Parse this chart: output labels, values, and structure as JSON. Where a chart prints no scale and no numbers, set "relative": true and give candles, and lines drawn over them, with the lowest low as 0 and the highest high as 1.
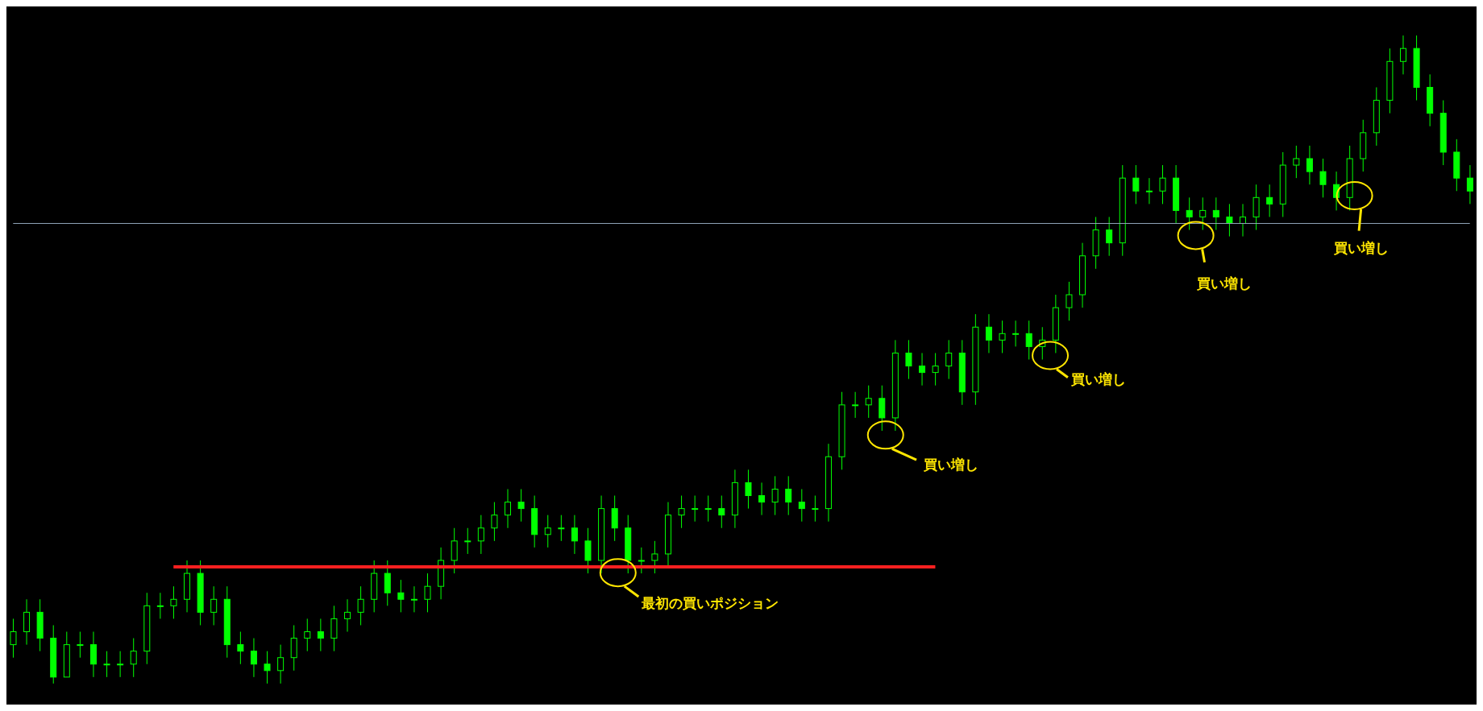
{
  "chart_data": {
    "type": "candlestick",
    "relative": true,
    "color": "#00ff00",
    "categories": [
      null,
      null,
      null,
      null,
      null,
      null,
      null,
      null,
      null,
      null,
      null,
      null,
      null,
      null,
      null,
      null,
      null,
      null,
      null,
      null,
      null,
      null,
      null,
      null,
      null,
      null,
      null,
      null,
      null,
      null,
      null,
      null,
      null,
      null,
      null,
      null,
      null,
      null,
      null,
      null,
      null,
      null,
      null,
      null,
      null,
      null,
      null,
      null,
      null,
      null,
      null,
      null,
      null,
      null,
      null,
      null,
      null,
      null,
      null,
      null,
      null,
      null,
      null,
      null,
      null,
      null,
      null,
      null,
      null,
      null,
      null,
      null,
      null,
      null,
      null,
      null,
      null,
      null,
      null,
      null,
      null,
      null,
      null,
      null,
      null,
      null,
      null,
      null,
      null,
      null,
      null,
      null,
      null,
      null,
      null,
      null,
      null,
      null,
      null,
      null,
      null,
      null,
      null,
      null,
      null,
      null,
      null,
      null,
      null,
      null
    ],
    "ohlc": [
      [
        0.06,
        0.1,
        0.04,
        0.08
      ],
      [
        0.08,
        0.13,
        0.06,
        0.11
      ],
      [
        0.11,
        0.13,
        0.05,
        0.07
      ],
      [
        0.07,
        0.09,
        0.0,
        0.01
      ],
      [
        0.01,
        0.08,
        0.01,
        0.06
      ],
      [
        0.06,
        0.08,
        0.04,
        0.06
      ],
      [
        0.06,
        0.08,
        0.01,
        0.03
      ],
      [
        0.03,
        0.05,
        0.01,
        0.03
      ],
      [
        0.03,
        0.05,
        0.01,
        0.03
      ],
      [
        0.03,
        0.07,
        0.01,
        0.05
      ],
      [
        0.05,
        0.14,
        0.03,
        0.12
      ],
      [
        0.12,
        0.14,
        0.1,
        0.12
      ],
      [
        0.12,
        0.15,
        0.1,
        0.13
      ],
      [
        0.13,
        0.19,
        0.11,
        0.17
      ],
      [
        0.17,
        0.19,
        0.09,
        0.11
      ],
      [
        0.11,
        0.15,
        0.09,
        0.13
      ],
      [
        0.13,
        0.15,
        0.04,
        0.06
      ],
      [
        0.06,
        0.08,
        0.03,
        0.05
      ],
      [
        0.05,
        0.07,
        0.01,
        0.03
      ],
      [
        0.03,
        0.05,
        0.0,
        0.02
      ],
      [
        0.02,
        0.06,
        0.0,
        0.04
      ],
      [
        0.04,
        0.09,
        0.02,
        0.07
      ],
      [
        0.07,
        0.1,
        0.05,
        0.08
      ],
      [
        0.08,
        0.1,
        0.05,
        0.07
      ],
      [
        0.07,
        0.12,
        0.05,
        0.1
      ],
      [
        0.1,
        0.13,
        0.08,
        0.11
      ],
      [
        0.11,
        0.15,
        0.09,
        0.13
      ],
      [
        0.13,
        0.19,
        0.11,
        0.17
      ],
      [
        0.17,
        0.19,
        0.12,
        0.14
      ],
      [
        0.14,
        0.16,
        0.11,
        0.13
      ],
      [
        0.13,
        0.15,
        0.11,
        0.13
      ],
      [
        0.13,
        0.17,
        0.11,
        0.15
      ],
      [
        0.15,
        0.21,
        0.13,
        0.19
      ],
      [
        0.19,
        0.24,
        0.17,
        0.22
      ],
      [
        0.22,
        0.24,
        0.2,
        0.22
      ],
      [
        0.22,
        0.26,
        0.2,
        0.24
      ],
      [
        0.24,
        0.28,
        0.22,
        0.26
      ],
      [
        0.26,
        0.3,
        0.24,
        0.28
      ],
      [
        0.28,
        0.3,
        0.25,
        0.27
      ],
      [
        0.27,
        0.29,
        0.21,
        0.23
      ],
      [
        0.23,
        0.26,
        0.21,
        0.24
      ],
      [
        0.24,
        0.26,
        0.22,
        0.24
      ],
      [
        0.24,
        0.26,
        0.2,
        0.22
      ],
      [
        0.22,
        0.24,
        0.17,
        0.19
      ],
      [
        0.19,
        0.29,
        0.17,
        0.27
      ],
      [
        0.27,
        0.29,
        0.22,
        0.24
      ],
      [
        0.24,
        0.26,
        0.17,
        0.19
      ],
      [
        0.19,
        0.21,
        0.17,
        0.19
      ],
      [
        0.19,
        0.22,
        0.17,
        0.2
      ],
      [
        0.2,
        0.28,
        0.18,
        0.26
      ],
      [
        0.26,
        0.29,
        0.24,
        0.27
      ],
      [
        0.27,
        0.29,
        0.25,
        0.27
      ],
      [
        0.27,
        0.29,
        0.25,
        0.27
      ],
      [
        0.27,
        0.29,
        0.24,
        0.26
      ],
      [
        0.26,
        0.33,
        0.24,
        0.31
      ],
      [
        0.31,
        0.33,
        0.27,
        0.29
      ],
      [
        0.29,
        0.31,
        0.26,
        0.28
      ],
      [
        0.28,
        0.32,
        0.26,
        0.3
      ],
      [
        0.3,
        0.32,
        0.26,
        0.28
      ],
      [
        0.28,
        0.3,
        0.25,
        0.27
      ],
      [
        0.27,
        0.29,
        0.25,
        0.27
      ],
      [
        0.27,
        0.37,
        0.25,
        0.35
      ],
      [
        0.35,
        0.45,
        0.33,
        0.43
      ],
      [
        0.43,
        0.45,
        0.41,
        0.43
      ],
      [
        0.43,
        0.46,
        0.41,
        0.44
      ],
      [
        0.44,
        0.46,
        0.39,
        0.41
      ],
      [
        0.41,
        0.53,
        0.39,
        0.51
      ],
      [
        0.51,
        0.53,
        0.47,
        0.49
      ],
      [
        0.49,
        0.51,
        0.46,
        0.48
      ],
      [
        0.48,
        0.51,
        0.46,
        0.49
      ],
      [
        0.49,
        0.53,
        0.47,
        0.51
      ],
      [
        0.51,
        0.53,
        0.43,
        0.45
      ],
      [
        0.45,
        0.57,
        0.43,
        0.55
      ],
      [
        0.55,
        0.57,
        0.51,
        0.53
      ],
      [
        0.53,
        0.56,
        0.51,
        0.54
      ],
      [
        0.54,
        0.56,
        0.52,
        0.54
      ],
      [
        0.54,
        0.56,
        0.5,
        0.52
      ],
      [
        0.52,
        0.55,
        0.5,
        0.53
      ],
      [
        0.53,
        0.6,
        0.51,
        0.58
      ],
      [
        0.58,
        0.62,
        0.56,
        0.6
      ],
      [
        0.6,
        0.68,
        0.58,
        0.66
      ],
      [
        0.66,
        0.72,
        0.64,
        0.7
      ],
      [
        0.7,
        0.72,
        0.66,
        0.68
      ],
      [
        0.68,
        0.8,
        0.66,
        0.78
      ],
      [
        0.78,
        0.8,
        0.74,
        0.76
      ],
      [
        0.76,
        0.78,
        0.74,
        0.76
      ],
      [
        0.76,
        0.8,
        0.74,
        0.78
      ],
      [
        0.78,
        0.8,
        0.71,
        0.73
      ],
      [
        0.73,
        0.75,
        0.7,
        0.72
      ],
      [
        0.72,
        0.75,
        0.7,
        0.73
      ],
      [
        0.73,
        0.75,
        0.7,
        0.72
      ],
      [
        0.72,
        0.74,
        0.69,
        0.71
      ],
      [
        0.71,
        0.74,
        0.69,
        0.72
      ],
      [
        0.72,
        0.77,
        0.7,
        0.75
      ],
      [
        0.75,
        0.77,
        0.72,
        0.74
      ],
      [
        0.74,
        0.82,
        0.72,
        0.8
      ],
      [
        0.8,
        0.83,
        0.78,
        0.81
      ],
      [
        0.81,
        0.83,
        0.77,
        0.79
      ],
      [
        0.79,
        0.81,
        0.75,
        0.77
      ],
      [
        0.77,
        0.79,
        0.73,
        0.75
      ],
      [
        0.75,
        0.83,
        0.73,
        0.81
      ],
      [
        0.81,
        0.87,
        0.79,
        0.85
      ],
      [
        0.85,
        0.92,
        0.83,
        0.9
      ],
      [
        0.9,
        0.98,
        0.88,
        0.96
      ],
      [
        0.96,
        1.0,
        0.94,
        0.98
      ],
      [
        0.98,
        1.0,
        0.9,
        0.92
      ],
      [
        0.92,
        0.94,
        0.86,
        0.88
      ],
      [
        0.88,
        0.9,
        0.8,
        0.82
      ],
      [
        0.82,
        0.84,
        0.76,
        0.78
      ],
      [
        0.78,
        0.8,
        0.74,
        0.76
      ]
    ],
    "ref_lines": [
      {
        "axis": "y",
        "value": 0.18,
        "color": "#ff2020"
      },
      {
        "axis": "y",
        "value": 0.71,
        "color": "#8fa3b8"
      }
    ],
    "annotations": [
      "最初の買いポジション",
      "買い増し",
      "買い増し",
      "買い増し",
      "買い増し"
    ]
  }
}
